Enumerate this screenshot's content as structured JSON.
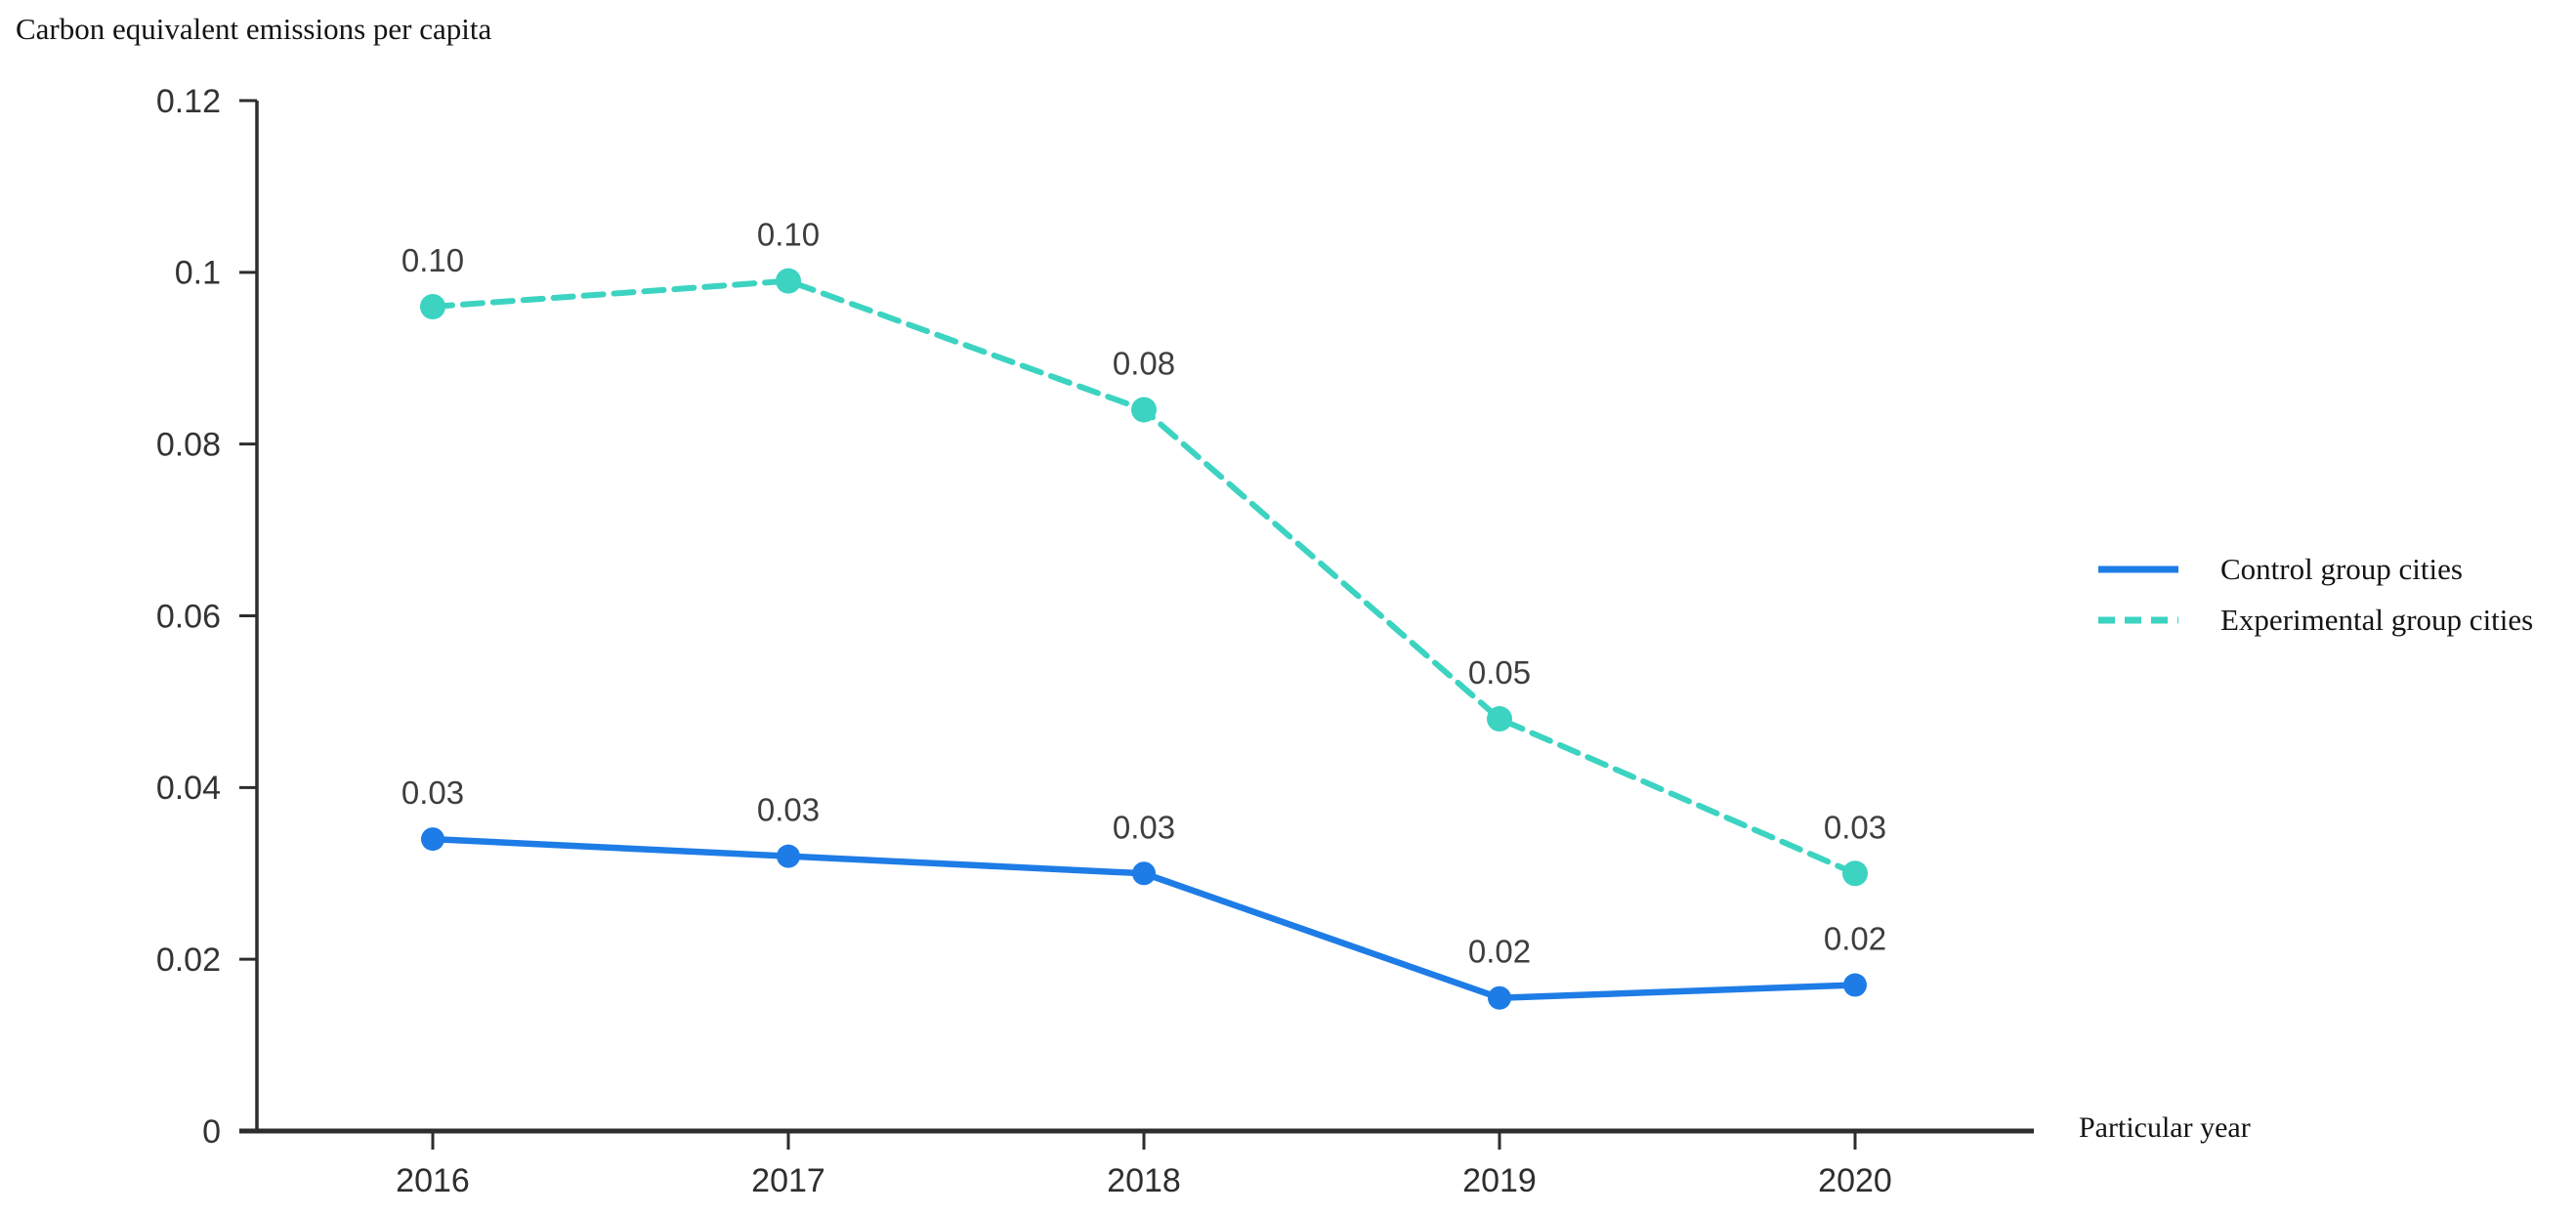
{
  "chart_data": {
    "type": "line",
    "title": "Carbon equivalent emissions per capita",
    "xlabel": "Particular year",
    "ylabel": "",
    "categories": [
      "2016",
      "2017",
      "2018",
      "2019",
      "2020"
    ],
    "y_ticks": [
      0,
      0.02,
      0.04,
      0.06,
      0.08,
      0.1,
      0.12
    ],
    "y_tick_labels": [
      "0",
      "0.02",
      "0.04",
      "0.06",
      "0.08",
      "0.1",
      "0.12"
    ],
    "ylim": [
      0,
      0.12
    ],
    "grid": false,
    "legend_position": "right",
    "series": [
      {
        "name": "Control group cities",
        "color": "#1e7ce6",
        "line_style": "solid",
        "values": [
          0.034,
          0.032,
          0.03,
          0.0155,
          0.017
        ],
        "point_labels": [
          "0.03",
          "0.03",
          "0.03",
          "0.02",
          "0.02"
        ]
      },
      {
        "name": "Experimental group cities",
        "color": "#3cd3c1",
        "line_style": "dashed",
        "values": [
          0.096,
          0.099,
          0.084,
          0.048,
          0.03
        ],
        "point_labels": [
          "0.10",
          "0.10",
          "0.08",
          "0.05",
          "0.03"
        ]
      }
    ]
  },
  "colors": {
    "axis": "#2d2d2d",
    "y_tick_label": "#333333",
    "x_tick_label": "#2e2e2e",
    "data_label": "#3e3e3e",
    "background": "#ffffff"
  }
}
